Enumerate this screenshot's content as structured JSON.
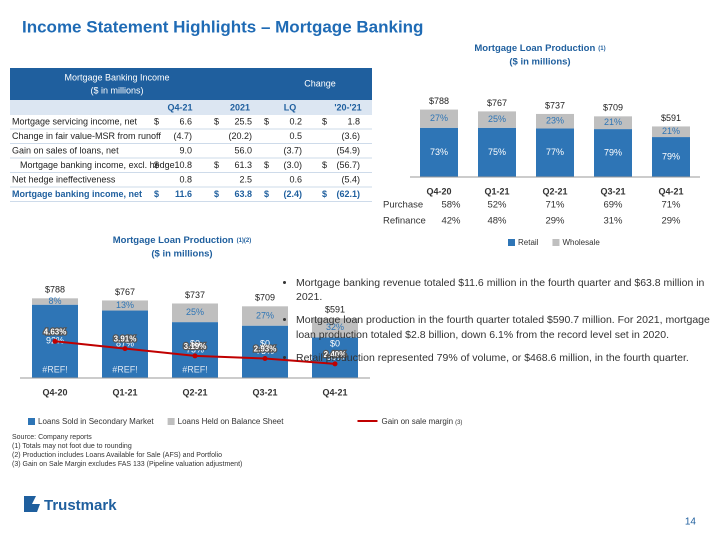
{
  "title": "Income Statement Highlights – Mortgage Banking",
  "table": {
    "header": [
      "Mortgage Banking Income",
      "($ in millions)"
    ],
    "change_header": "Change",
    "columns": [
      "Q4-21",
      "2021",
      "LQ",
      "'20-'21"
    ],
    "rows": [
      {
        "label": "Mortgage servicing income, net",
        "currency": "$",
        "cells": [
          "6.6",
          "25.5",
          "0.2",
          "1.8"
        ]
      },
      {
        "label": "Change in fair value-MSR from runoff",
        "cells": [
          "(4.7)",
          "(20.2)",
          "0.5",
          "(3.6)"
        ]
      },
      {
        "label": "Gain on sales of loans, net",
        "cells": [
          "9.0",
          "56.0",
          "(3.7)",
          "(54.9)"
        ]
      },
      {
        "label": "Mortgage banking income, excl. hedge",
        "currency": "$",
        "cells": [
          "10.8",
          "61.3",
          "(3.0)",
          "(56.7)"
        ]
      },
      {
        "label": "Net hedge ineffectiveness",
        "cells": [
          "0.8",
          "2.5",
          "0.6",
          "(5.4)"
        ]
      },
      {
        "label": "Mortgage banking income, net",
        "currency": "$",
        "cells": [
          "11.6",
          "63.8",
          "(2.4)",
          "(62.1)"
        ]
      }
    ]
  },
  "chart_data": [
    {
      "type": "bar",
      "title": "Mortgage Loan Production",
      "title_note": "(1)",
      "subtitle": "($ in millions)",
      "categories": [
        "Q4-20",
        "Q1-21",
        "Q2-21",
        "Q3-21",
        "Q4-21"
      ],
      "totals": [
        788,
        767,
        737,
        709,
        591
      ],
      "total_labels": [
        "$788",
        "$767",
        "$737",
        "$709",
        "$591"
      ],
      "ylim": [
        0,
        900
      ],
      "series": [
        {
          "name": "Retail",
          "color": "#2e75b6",
          "values": [
            73,
            75,
            77,
            79,
            79
          ],
          "value_labels": [
            "73%",
            "75%",
            "77%",
            "79%",
            "79%"
          ]
        },
        {
          "name": "Wholesale",
          "color": "#bfbfbf",
          "values": [
            27,
            25,
            23,
            21,
            21
          ],
          "value_labels": [
            "27%",
            "25%",
            "23%",
            "21%",
            "21%"
          ]
        }
      ],
      "mix": [
        {
          "name": "Purchase",
          "values": [
            "58%",
            "52%",
            "71%",
            "69%",
            "71%"
          ]
        },
        {
          "name": "Refinance",
          "values": [
            "42%",
            "48%",
            "29%",
            "31%",
            "29%"
          ]
        }
      ]
    },
    {
      "type": "bar",
      "title": "Mortgage Loan Production",
      "title_note": "(1)(2)",
      "subtitle": "($ in millions)",
      "categories": [
        "Q4-20",
        "Q1-21",
        "Q2-21",
        "Q3-21",
        "Q4-21"
      ],
      "totals": [
        788,
        767,
        737,
        709,
        591
      ],
      "total_labels": [
        "$788",
        "$767",
        "$737",
        "$709",
        "$591"
      ],
      "ylim": [
        0,
        900
      ],
      "y2lim": [
        1,
        10
      ],
      "series": [
        {
          "name": "Loans Sold in Secondary Market",
          "color": "#2e75b6",
          "values": [
            92,
            87,
            75,
            73,
            68
          ],
          "value_labels": [
            "92%",
            "87%",
            "75%",
            "73%",
            "68%"
          ]
        },
        {
          "name": "Loans Held on Balance Sheet",
          "color": "#bfbfbf",
          "values": [
            8,
            13,
            25,
            27,
            32
          ],
          "value_labels": [
            "8%",
            "13%",
            "25%",
            "27%",
            "32%"
          ]
        },
        {
          "name": "Gain on sale margin",
          "name_note": "(3)",
          "type": "line",
          "axis": "y2",
          "color": "#c00000",
          "values": [
            4.63,
            3.91,
            3.19,
            2.93,
            2.4
          ],
          "value_labels": [
            "4.63%",
            "3.91%",
            "3.19%",
            "2.93%",
            "2.40%"
          ]
        }
      ],
      "annotations": [
        {
          "text": "#REF!",
          "category": "Q4-20"
        },
        {
          "text": "#REF!",
          "category": "Q1-21"
        },
        {
          "text": "#REF!",
          "category": "Q2-21"
        },
        {
          "text": "$0",
          "category": "Q2-21"
        },
        {
          "text": "$0",
          "category": "Q3-21"
        },
        {
          "text": "$0",
          "category": "Q4-21"
        }
      ]
    }
  ],
  "bullets": [
    "Mortgage banking revenue totaled $11.6 million in the fourth quarter and $63.8 million in 2021.",
    "Mortgage loan production in the fourth quarter totaled $590.7 million.  For 2021, mortgage loan production totaled $2.8 billion, down 6.1% from the record level set in 2020.",
    "Retail production represented 79% of volume, or $468.6 million, in the fourth quarter."
  ],
  "footnotes": [
    "Source: Company reports",
    "(1) Totals may not foot due to rounding",
    "(2) Production includes Loans Available for Sale (AFS) and Portfolio",
    "(3) Gain on Sale Margin excludes FAS 133 (Pipeline valuation adjustment)"
  ],
  "logo": "Trustmark",
  "page_number": "14"
}
